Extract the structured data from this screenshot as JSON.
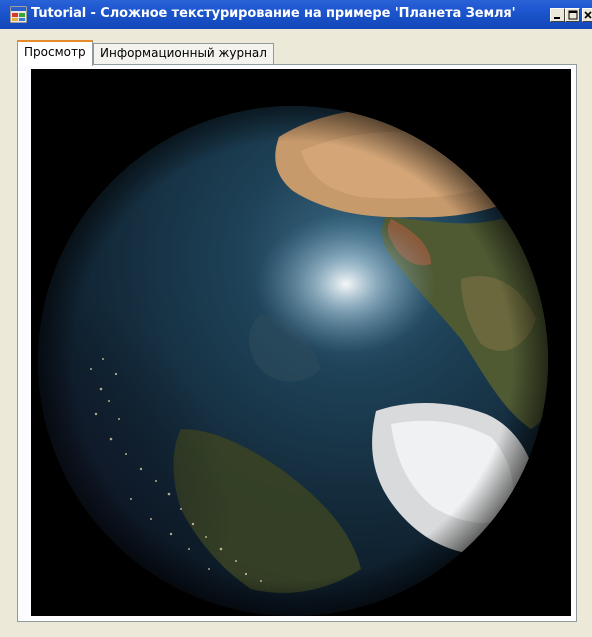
{
  "window": {
    "title": "Tutorial - Сложное текстурирование на примере 'Планета Земля'",
    "icon": "app-window-icon",
    "controls": [
      "minimize-icon",
      "maximize-icon",
      "close-icon"
    ]
  },
  "tabs": [
    {
      "label": "Просмотр",
      "active": true
    },
    {
      "label": "Информационный журнал",
      "active": false
    }
  ],
  "viewport": {
    "content": "rendered-earth-globe",
    "background_color": "#000000"
  },
  "colors": {
    "titlebar": "#1d56cf",
    "tab_highlight": "#e68b2c",
    "window_face": "#ece9d8"
  }
}
